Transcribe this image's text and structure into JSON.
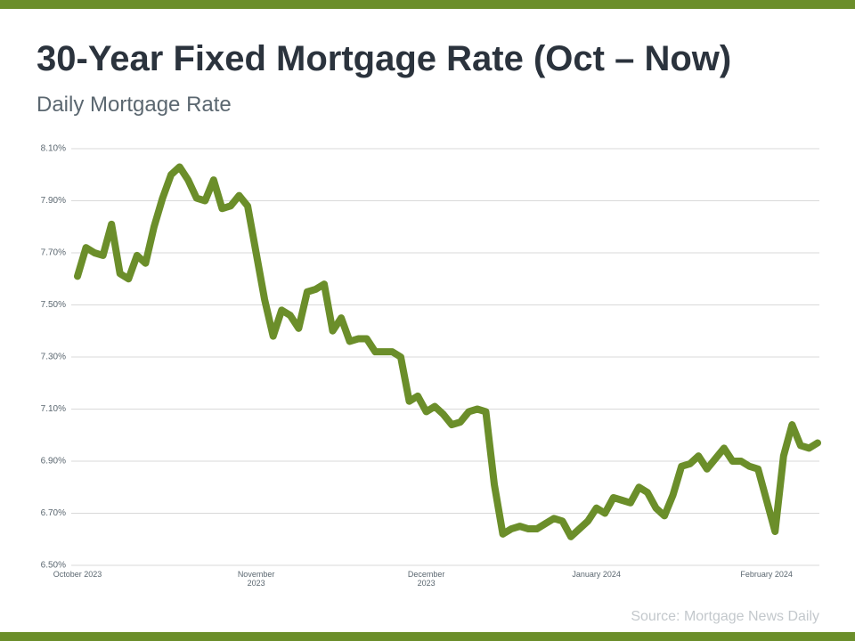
{
  "chart_data": {
    "type": "line",
    "title": "30-Year Fixed Mortgage Rate (Oct – Now)",
    "subtitle": "Daily Mortgage Rate",
    "source": "Source: Mortgage News Daily",
    "categories": [
      "October 2023",
      null,
      null,
      null,
      null,
      null,
      null,
      null,
      null,
      null,
      null,
      null,
      null,
      null,
      null,
      null,
      null,
      null,
      null,
      null,
      null,
      "November 2023",
      null,
      null,
      null,
      null,
      null,
      null,
      null,
      null,
      null,
      null,
      null,
      null,
      null,
      null,
      null,
      null,
      null,
      null,
      null,
      "December 2023",
      null,
      null,
      null,
      null,
      null,
      null,
      null,
      null,
      null,
      null,
      null,
      null,
      null,
      null,
      null,
      null,
      null,
      null,
      null,
      "January 2024",
      null,
      null,
      null,
      null,
      null,
      null,
      null,
      null,
      null,
      null,
      null,
      null,
      null,
      null,
      null,
      null,
      null,
      null,
      null,
      "February 2024",
      null,
      null,
      null,
      null,
      null,
      null
    ],
    "series": [
      {
        "name": "Daily Mortgage Rate",
        "color": "#6b8e2a",
        "values": [
          7.61,
          7.72,
          7.7,
          7.69,
          7.81,
          7.62,
          7.6,
          7.69,
          7.66,
          7.8,
          7.91,
          8.0,
          8.03,
          7.98,
          7.91,
          7.9,
          7.98,
          7.87,
          7.88,
          7.92,
          7.88,
          7.7,
          7.52,
          7.38,
          7.48,
          7.46,
          7.41,
          7.55,
          7.56,
          7.58,
          7.4,
          7.45,
          7.36,
          7.37,
          7.37,
          7.32,
          7.32,
          7.32,
          7.3,
          7.13,
          7.15,
          7.09,
          7.11,
          7.08,
          7.04,
          7.05,
          7.09,
          7.1,
          7.09,
          6.81,
          6.62,
          6.64,
          6.65,
          6.64,
          6.64,
          6.66,
          6.68,
          6.67,
          6.61,
          6.64,
          6.67,
          6.72,
          6.7,
          6.76,
          6.75,
          6.74,
          6.8,
          6.78,
          6.72,
          6.69,
          6.77,
          6.88,
          6.89,
          6.92,
          6.87,
          6.91,
          6.95,
          6.9,
          6.9,
          6.88,
          6.87,
          6.75,
          6.63,
          6.92,
          7.04,
          6.96,
          6.95,
          6.97
        ]
      }
    ],
    "ylim": [
      6.5,
      8.1
    ],
    "yticks": [
      {
        "value": 6.5,
        "label": "6.50%"
      },
      {
        "value": 6.7,
        "label": "6.70%"
      },
      {
        "value": 6.9,
        "label": "6.90%"
      },
      {
        "value": 7.1,
        "label": "7.10%"
      },
      {
        "value": 7.3,
        "label": "7.30%"
      },
      {
        "value": 7.5,
        "label": "7.50%"
      },
      {
        "value": 7.7,
        "label": "7.70%"
      },
      {
        "value": 7.9,
        "label": "7.90%"
      },
      {
        "value": 8.1,
        "label": "8.10%"
      }
    ],
    "grid": true
  }
}
